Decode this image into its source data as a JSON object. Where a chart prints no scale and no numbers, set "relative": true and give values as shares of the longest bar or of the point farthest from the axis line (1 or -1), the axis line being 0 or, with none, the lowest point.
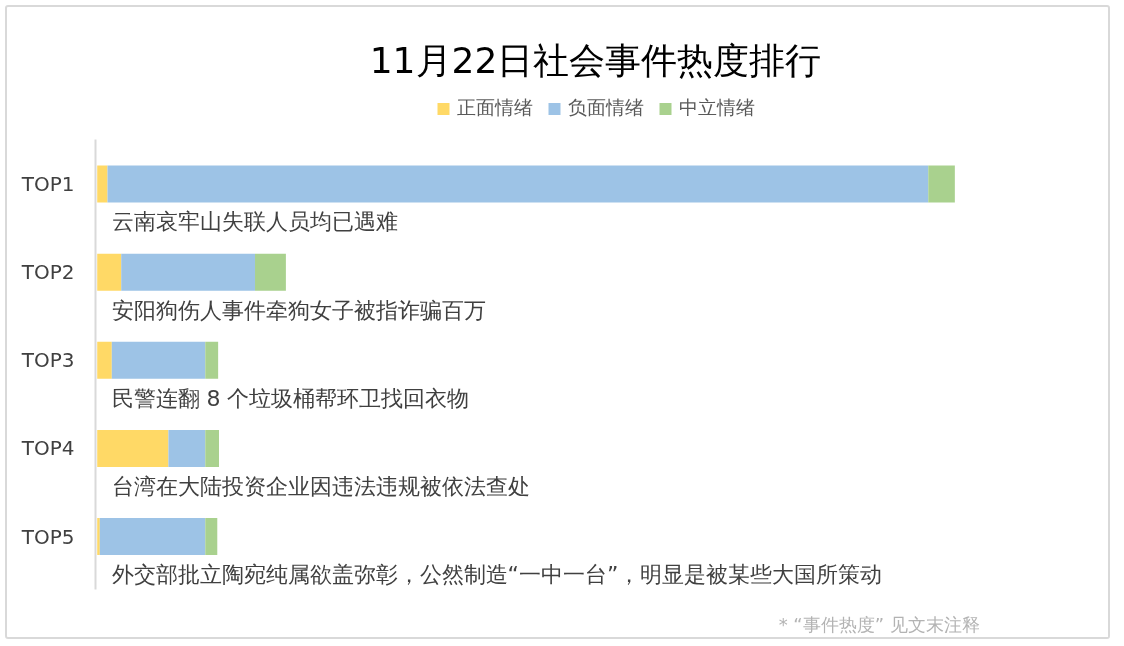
{
  "chart_data": {
    "type": "bar",
    "orientation": "horizontal",
    "stacked": true,
    "relative": true,
    "title": "11月22日社会事件热度排行",
    "categories": [
      "TOP1",
      "TOP2",
      "TOP3",
      "TOP4",
      "TOP5"
    ],
    "series": [
      {
        "name": "正面情绪",
        "color": "#ffd966",
        "values": [
          0.012,
          0.028,
          0.017,
          0.083,
          0.003
        ]
      },
      {
        "name": "负面情绪",
        "color": "#9dc3e6",
        "values": [
          0.957,
          0.156,
          0.109,
          0.043,
          0.123
        ]
      },
      {
        "name": "中立情绪",
        "color": "#a9d18e",
        "values": [
          0.031,
          0.036,
          0.015,
          0.016,
          0.014
        ]
      }
    ],
    "legend": "top",
    "grid": false,
    "annotations": [
      "云南哀牢山失联人员均已遇难",
      "安阳狗伤人事件牵狗女子被指诈骗百万",
      "民警连翻 8 个垃圾桶帮环卫找回衣物",
      "台湾在大陆投资企业因违法违规被依法查处",
      "外交部批立陶宛纯属欲盖弥彰，公然制造“一中一台”，明显是被某些大国所策动",
      "* “事件热度” 见文末注释"
    ]
  }
}
